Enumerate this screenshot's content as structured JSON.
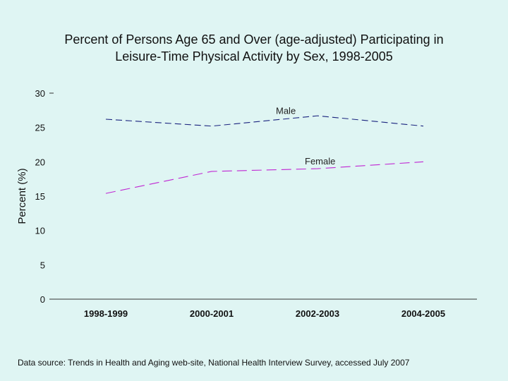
{
  "chart_data": {
    "type": "line",
    "title": "Percent of Persons Age 65 and Over (age-adjusted) Participating in\nLeisure-Time Physical Activity by Sex, 1998-2005",
    "xlabel": "",
    "ylabel": "Percent (%)",
    "ylim": [
      0,
      30
    ],
    "yticks": [
      "0",
      "5",
      "10",
      "15",
      "20",
      "25",
      "30"
    ],
    "categories": [
      "1998-1999",
      "2000-2001",
      "2002-2003",
      "2004-2005"
    ],
    "series": [
      {
        "name": "Male",
        "label": "Male",
        "values": [
          26.2,
          25.2,
          26.7,
          25.2
        ],
        "color": "#1a237e"
      },
      {
        "name": "Female",
        "label": "Female",
        "values": [
          15.4,
          18.6,
          19.0,
          20.0
        ],
        "color": "#c026d3"
      }
    ],
    "grid": false,
    "legend": "inline"
  },
  "source": "Data source: Trends in Health and Aging web-site, National Health Interview Survey, accessed July 2007"
}
